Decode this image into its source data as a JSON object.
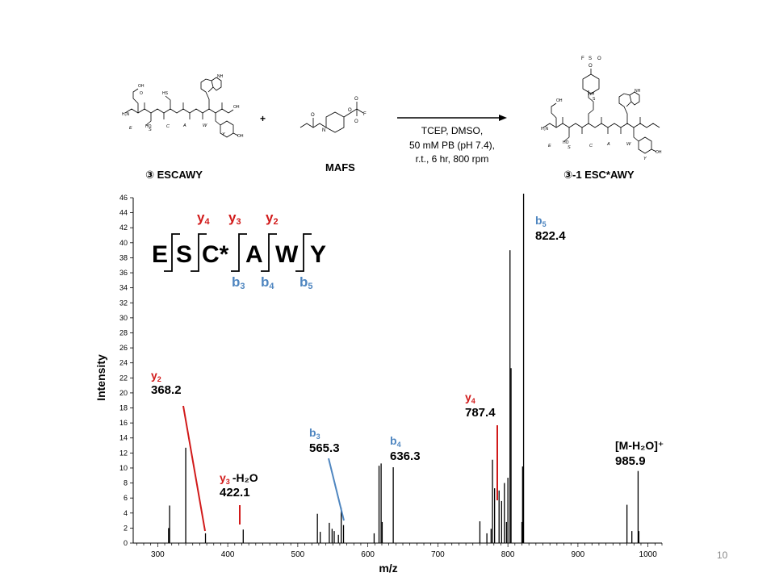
{
  "slide": {
    "page_number": "10"
  },
  "reaction": {
    "reactant": {
      "label": "③ ESCAWY",
      "residue_letters": [
        "E",
        "S",
        "C",
        "A",
        "W",
        "Y"
      ]
    },
    "plus": "+",
    "reagent": {
      "label": "MAFS"
    },
    "conditions": [
      "TCEP, DMSO,",
      "50 mM PB (pH 7.4),",
      "r.t., 6 hr, 800 rpm"
    ],
    "product": {
      "label": "③-1 ESC*AWY",
      "residue_letters": [
        "E",
        "S",
        "C",
        "A",
        "W",
        "Y"
      ]
    }
  },
  "colors": {
    "y_ion": "#d11a1a",
    "b_ion": "#4f86c0",
    "text": "#000000"
  },
  "sequence": {
    "residues": [
      "E",
      "S",
      "C*",
      "A",
      "W",
      "Y"
    ],
    "y_labels": [
      {
        "ion": "y",
        "sub": "4"
      },
      {
        "ion": "y",
        "sub": "3"
      },
      {
        "ion": "y",
        "sub": "2"
      }
    ],
    "b_labels": [
      {
        "ion": "b",
        "sub": "3"
      },
      {
        "ion": "b",
        "sub": "4"
      },
      {
        "ion": "b",
        "sub": "5"
      }
    ]
  },
  "chart_data": {
    "type": "bar",
    "xlabel": "m/z",
    "ylabel": "Intensity",
    "xlim": [
      265,
      1020
    ],
    "ylim": [
      0,
      46
    ],
    "x_ticks": [
      300,
      400,
      500,
      600,
      700,
      800,
      900,
      1000
    ],
    "y_ticks": [
      0,
      2,
      4,
      6,
      8,
      10,
      12,
      14,
      16,
      18,
      20,
      22,
      24,
      26,
      28,
      30,
      32,
      34,
      36,
      38,
      40,
      42,
      44,
      46
    ],
    "peaks": [
      {
        "mz": 315.5,
        "intensity": 2.0
      },
      {
        "mz": 317,
        "intensity": 5.0
      },
      {
        "mz": 340,
        "intensity": 12.7
      },
      {
        "mz": 368.2,
        "intensity": 1.3
      },
      {
        "mz": 422.1,
        "intensity": 1.8
      },
      {
        "mz": 528,
        "intensity": 3.9
      },
      {
        "mz": 532,
        "intensity": 1.5
      },
      {
        "mz": 545,
        "intensity": 2.7
      },
      {
        "mz": 549,
        "intensity": 1.9
      },
      {
        "mz": 552,
        "intensity": 1.6
      },
      {
        "mz": 558,
        "intensity": 1.1
      },
      {
        "mz": 562,
        "intensity": 4.7
      },
      {
        "mz": 565.3,
        "intensity": 2.4
      },
      {
        "mz": 609,
        "intensity": 1.3
      },
      {
        "mz": 616,
        "intensity": 10.3
      },
      {
        "mz": 619,
        "intensity": 10.6
      },
      {
        "mz": 620.5,
        "intensity": 2.8
      },
      {
        "mz": 636.3,
        "intensity": 10.1
      },
      {
        "mz": 760,
        "intensity": 2.9
      },
      {
        "mz": 770,
        "intensity": 1.3
      },
      {
        "mz": 776,
        "intensity": 1.9
      },
      {
        "mz": 778,
        "intensity": 11.1
      },
      {
        "mz": 781,
        "intensity": 7.3
      },
      {
        "mz": 787.4,
        "intensity": 7.0
      },
      {
        "mz": 791,
        "intensity": 5.6
      },
      {
        "mz": 795,
        "intensity": 8.0
      },
      {
        "mz": 798,
        "intensity": 2.8
      },
      {
        "mz": 800,
        "intensity": 8.7
      },
      {
        "mz": 803,
        "intensity": 39.0
      },
      {
        "mz": 804.5,
        "intensity": 23.3
      },
      {
        "mz": 820,
        "intensity": 2.8
      },
      {
        "mz": 821,
        "intensity": 10.2
      },
      {
        "mz": 822.4,
        "intensity": 46.6
      },
      {
        "mz": 970,
        "intensity": 5.1
      },
      {
        "mz": 977,
        "intensity": 1.6
      },
      {
        "mz": 985.9,
        "intensity": 9.6
      },
      {
        "mz": 987,
        "intensity": 1.6
      }
    ],
    "annotations": [
      {
        "ion": "y",
        "sub": "2",
        "suffix": "",
        "value": "368.2",
        "type": "y"
      },
      {
        "ion": "y",
        "sub": "3",
        "suffix": "-H₂O",
        "value": "422.1",
        "type": "y"
      },
      {
        "ion": "b",
        "sub": "3",
        "suffix": "",
        "value": "565.3",
        "type": "b"
      },
      {
        "ion": "b",
        "sub": "4",
        "suffix": "",
        "value": "636.3",
        "type": "b"
      },
      {
        "ion": "y",
        "sub": "4",
        "suffix": "",
        "value": "787.4",
        "type": "y"
      },
      {
        "ion": "b",
        "sub": "5",
        "suffix": "",
        "value": "822.4",
        "type": "b"
      },
      {
        "ion": "",
        "sub": "",
        "suffix": "[M-H₂O]⁺",
        "value": "985.9",
        "type": "other"
      }
    ]
  }
}
